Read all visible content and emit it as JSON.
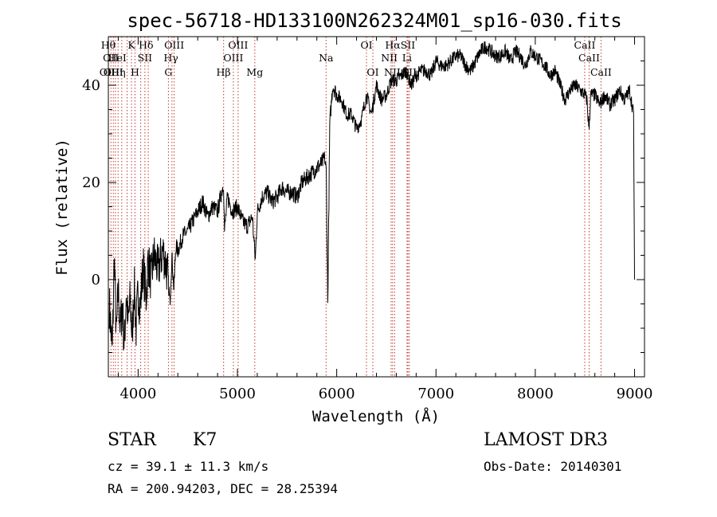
{
  "chart_data": {
    "type": "line",
    "title": "spec-56718-HD133100N262324M01_sp16-030.fits",
    "xlabel": "Wavelength (Å)",
    "ylabel": "Flux (relative)",
    "xlim": [
      3700,
      9100
    ],
    "ylim": [
      -20,
      50
    ],
    "x_ticks": [
      4000,
      5000,
      6000,
      7000,
      8000,
      9000
    ],
    "y_ticks": [
      0,
      20,
      40
    ],
    "grid": false,
    "series": [
      {
        "x": [
          3710,
          3740,
          3760,
          3780,
          3800,
          3820,
          3840,
          3860,
          3880,
          3900,
          3920,
          3940,
          3960,
          3980,
          4000,
          4020,
          4050,
          4080,
          4100,
          4130,
          4160,
          4200,
          4250,
          4300,
          4320,
          4340,
          4360,
          4380,
          4400,
          4450,
          4500,
          4550,
          4600,
          4650,
          4700,
          4750,
          4800,
          4860,
          4870,
          4900,
          4950,
          5000,
          5050,
          5100,
          5150,
          5180,
          5200,
          5250,
          5300,
          5350,
          5400,
          5450,
          5500,
          5550,
          5600,
          5650,
          5700,
          5750,
          5800,
          5850,
          5880,
          5895,
          5910,
          5930,
          5960,
          6000,
          6050,
          6100,
          6150,
          6200,
          6250,
          6300,
          6350,
          6400,
          6450,
          6500,
          6550,
          6600,
          6650,
          6700,
          6750,
          6800,
          6850,
          6900,
          6950,
          7000,
          7050,
          7100,
          7150,
          7200,
          7250,
          7300,
          7350,
          7400,
          7450,
          7500,
          7550,
          7600,
          7650,
          7700,
          7750,
          7800,
          7850,
          7900,
          7950,
          8000,
          8050,
          8100,
          8150,
          8200,
          8250,
          8300,
          8350,
          8400,
          8450,
          8500,
          8520,
          8540,
          8560,
          8600,
          8650,
          8700,
          8750,
          8800,
          8850,
          8900,
          8950,
          8990,
          9000
        ],
        "y": [
          -5,
          -15,
          5,
          -12,
          -2,
          -10,
          -5,
          -14,
          -3,
          -9,
          -4,
          -12,
          -1,
          -10,
          -2,
          -6,
          3,
          -4,
          4,
          0,
          5,
          2,
          6,
          1,
          -5,
          5,
          -2,
          7,
          6,
          9,
          10,
          12,
          14,
          16,
          13,
          15,
          14,
          20,
          10,
          17,
          14,
          15,
          12,
          11,
          13,
          4,
          14,
          17,
          18,
          16,
          17,
          19,
          18,
          18,
          17,
          20,
          21,
          22,
          23,
          24,
          25,
          22,
          -5,
          32,
          40,
          38,
          37,
          34,
          34,
          31,
          33,
          38,
          34,
          40,
          37,
          38,
          41,
          41,
          42,
          43,
          40,
          42,
          43,
          43,
          42,
          45,
          44,
          44,
          45,
          46,
          46,
          44,
          43,
          45,
          47,
          48,
          47,
          46,
          46,
          47,
          45,
          47,
          46,
          44,
          47,
          46,
          45,
          44,
          42,
          43,
          40,
          37,
          39,
          40,
          39,
          38,
          37,
          31,
          38,
          38,
          36,
          38,
          36,
          37,
          39,
          37,
          39,
          34,
          0
        ]
      }
    ],
    "line_markers": [
      {
        "wl": 3726,
        "label": "OII",
        "row": 2
      },
      {
        "wl": 3750,
        "label": "OIII",
        "row": 3
      },
      {
        "wl": 3771,
        "label": "",
        "row": 0
      },
      {
        "wl": 3798,
        "label": "",
        "row": 0
      },
      {
        "wl": 3835,
        "label": "",
        "row": 0
      },
      {
        "wl": 3889,
        "label": "",
        "row": 0
      },
      {
        "wl": 3933,
        "label": "K",
        "row": 1
      },
      {
        "wl": 3968,
        "label": "H",
        "row": 3
      },
      {
        "wl": 4026,
        "label": "",
        "row": 0
      },
      {
        "wl": 4068,
        "label": "SII",
        "row": 2
      },
      {
        "wl": 4102,
        "label": "",
        "row": 0
      },
      {
        "wl": 4305,
        "label": "G",
        "row": 3
      },
      {
        "wl": 4341,
        "label": "",
        "row": 0
      },
      {
        "wl": 4363,
        "label": "OIII",
        "row": 1
      },
      {
        "wl": 4861,
        "label": "",
        "row": 0
      },
      {
        "wl": 4959,
        "label": "OIII",
        "row": 2
      },
      {
        "wl": 5007,
        "label": "OIII",
        "row": 1
      },
      {
        "wl": 5175,
        "label": "Mg",
        "row": 3
      },
      {
        "wl": 5893,
        "label": "Na",
        "row": 2
      },
      {
        "wl": 6300,
        "label": "OI",
        "row": 1
      },
      {
        "wl": 6364,
        "label": "OI",
        "row": 3
      },
      {
        "wl": 6548,
        "label": "",
        "row": 0
      },
      {
        "wl": 6563,
        "label": "",
        "row": 0
      },
      {
        "wl": 6583,
        "label": "",
        "row": 0
      },
      {
        "wl": 6708,
        "label": "Li",
        "row": 2
      },
      {
        "wl": 6717,
        "label": "SII",
        "row": 1
      },
      {
        "wl": 6731,
        "label": "SII",
        "row": 3
      },
      {
        "wl": 8498,
        "label": "CaII",
        "row": 1
      },
      {
        "wl": 8542,
        "label": "CaII",
        "row": 2
      },
      {
        "wl": 8662,
        "label": "CaII",
        "row": 3
      }
    ],
    "extra_line_labels": [
      {
        "wl": 3700,
        "label": "Hθ",
        "row": 1
      },
      {
        "wl": 3690,
        "label": "OII",
        "row": 3
      },
      {
        "wl": 3790,
        "label": "HeI",
        "row": 2
      },
      {
        "wl": 3800,
        "label": "Hη",
        "row": 3
      },
      {
        "wl": 4080,
        "label": "Hδ",
        "row": 1
      },
      {
        "wl": 4330,
        "label": "Hγ",
        "row": 2
      },
      {
        "wl": 4860,
        "label": "Hβ",
        "row": 3
      },
      {
        "wl": 6530,
        "label": "NII",
        "row": 2
      },
      {
        "wl": 6565,
        "label": "Hα",
        "row": 1
      },
      {
        "wl": 6560,
        "label": "NII",
        "row": 3
      }
    ]
  },
  "info": {
    "class_label": "STAR",
    "subclass": "K7",
    "survey": "LAMOST DR3",
    "cz": "cz = 39.1 ± 11.3 km/s",
    "obs_date": "Obs-Date: 20140301",
    "coords": "RA = 200.94203, DEC =  28.25394"
  }
}
